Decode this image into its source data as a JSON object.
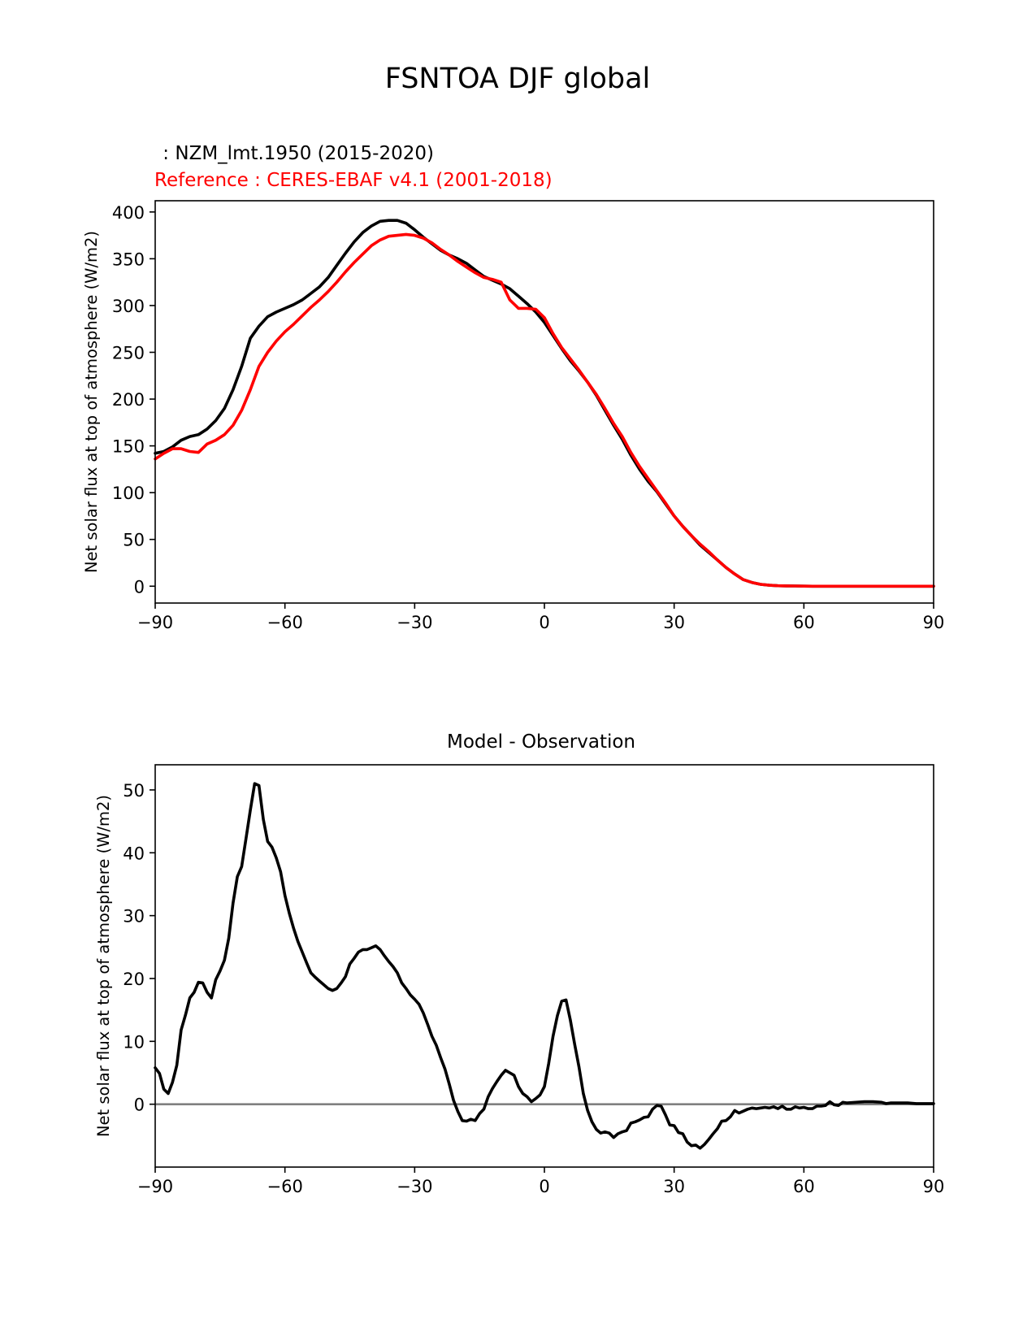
{
  "figure": {
    "title": "FSNTOA DJF global"
  },
  "colors": {
    "model": "#000000",
    "reference": "#ff0000",
    "zero_line": "#808080",
    "axis": "#000000"
  },
  "chart_data": [
    {
      "type": "line",
      "test_label": " : NZM_lmt.1950 (2015-2020)",
      "ref_label": "Reference : CERES-EBAF v4.1 (2001-2018)",
      "title": "",
      "xlabel": "",
      "ylabel": "Net solar flux at top of atmosphere (W/m2)",
      "xlim": [
        -90,
        90
      ],
      "ylim": [
        -18,
        412
      ],
      "xticks": [
        -90,
        -60,
        -30,
        0,
        30,
        60,
        90
      ],
      "xtick_labels": [
        "−90",
        "−60",
        "−30",
        "0",
        "30",
        "60",
        "90"
      ],
      "yticks": [
        0,
        50,
        100,
        150,
        200,
        250,
        300,
        350,
        400
      ],
      "ytick_labels": [
        "0",
        "50",
        "100",
        "150",
        "200",
        "250",
        "300",
        "350",
        "400"
      ],
      "series": [
        {
          "name": "NZM_lmt.1950",
          "color": "#000000",
          "x": [
            -90,
            -88,
            -86,
            -84,
            -82,
            -80,
            -78,
            -76,
            -74,
            -72,
            -70,
            -68,
            -66,
            -64,
            -62,
            -60,
            -58,
            -56,
            -54,
            -52,
            -50,
            -48,
            -46,
            -44,
            -42,
            -40,
            -38,
            -36,
            -34,
            -32,
            -30,
            -28,
            -26,
            -24,
            -22,
            -20,
            -18,
            -16,
            -14,
            -12,
            -10,
            -8,
            -6,
            -4,
            -2,
            0,
            2,
            4,
            6,
            8,
            10,
            12,
            14,
            16,
            18,
            20,
            22,
            24,
            26,
            28,
            30,
            32,
            34,
            36,
            38,
            40,
            42,
            44,
            46,
            48,
            50,
            52,
            54,
            56,
            58,
            60,
            62,
            64,
            66,
            68,
            70,
            72,
            74,
            76,
            78,
            80,
            82,
            84,
            86,
            88,
            90
          ],
          "values": [
            142,
            144,
            149,
            156,
            160,
            162,
            168,
            177,
            190,
            210,
            235,
            265,
            278,
            288,
            293,
            297,
            301,
            306,
            313,
            320,
            330,
            343,
            356,
            368,
            378,
            385,
            390,
            391,
            391,
            388,
            381,
            373,
            366,
            359,
            354,
            350,
            345,
            338,
            331,
            327,
            323,
            318,
            310,
            302,
            293,
            282,
            268,
            254,
            241,
            230,
            218,
            204,
            188,
            172,
            157,
            140,
            125,
            112,
            101,
            88,
            75,
            64,
            54,
            44,
            36,
            28,
            20,
            13,
            7,
            4,
            2,
            1,
            0.5,
            0.3,
            0.2,
            0.1,
            0,
            0,
            0,
            0,
            0,
            0,
            0,
            0,
            0,
            0,
            0,
            0,
            0,
            0,
            0
          ]
        },
        {
          "name": "CERES-EBAF v4.1",
          "color": "#ff0000",
          "x": [
            -90,
            -88,
            -86,
            -84,
            -82,
            -80,
            -78,
            -76,
            -74,
            -72,
            -70,
            -68,
            -66,
            -64,
            -62,
            -60,
            -58,
            -56,
            -54,
            -52,
            -50,
            -48,
            -46,
            -44,
            -42,
            -40,
            -38,
            -36,
            -34,
            -32,
            -30,
            -28,
            -26,
            -24,
            -22,
            -20,
            -18,
            -16,
            -14,
            -12,
            -10,
            -8,
            -6,
            -4,
            -2,
            0,
            2,
            4,
            6,
            8,
            10,
            12,
            14,
            16,
            18,
            20,
            22,
            24,
            26,
            28,
            30,
            32,
            34,
            36,
            38,
            40,
            42,
            44,
            46,
            48,
            50,
            52,
            54,
            56,
            58,
            60,
            62,
            64,
            66,
            68,
            70,
            72,
            74,
            76,
            78,
            80,
            82,
            84,
            86,
            88,
            90
          ],
          "values": [
            136,
            142,
            147,
            147,
            144,
            143,
            152,
            156,
            162,
            172,
            188,
            210,
            235,
            250,
            262,
            272,
            280,
            289,
            298,
            306,
            315,
            325,
            336,
            346,
            355,
            364,
            370,
            374,
            375,
            376,
            375,
            372,
            367,
            360,
            354,
            347,
            341,
            335,
            330,
            328,
            325,
            306,
            297,
            297,
            296,
            287,
            270,
            255,
            243,
            231,
            218,
            205,
            190,
            174,
            160,
            143,
            128,
            115,
            102,
            89,
            75,
            64,
            54,
            45,
            37,
            28,
            20,
            13,
            7,
            4,
            2,
            1,
            0.5,
            0.3,
            0.2,
            0.1,
            0,
            0,
            0,
            0,
            0,
            0,
            0,
            0,
            0,
            0,
            0,
            0,
            0,
            0,
            0
          ]
        }
      ]
    },
    {
      "type": "line",
      "title": "Model - Observation",
      "xlabel": "",
      "ylabel": "Net solar flux at top of atmosphere (W/m2)",
      "xlim": [
        -90,
        90
      ],
      "ylim": [
        -10,
        54
      ],
      "xticks": [
        -90,
        -60,
        -30,
        0,
        30,
        60,
        90
      ],
      "xtick_labels": [
        "−90",
        "−60",
        "−30",
        "0",
        "30",
        "60",
        "90"
      ],
      "yticks": [
        0,
        10,
        20,
        30,
        40,
        50
      ],
      "ytick_labels": [
        "0",
        "10",
        "20",
        "30",
        "40",
        "50"
      ],
      "zero_line": true,
      "series": [
        {
          "name": "Model - Observation",
          "color": "#000000",
          "x": [
            -90,
            -89,
            -88,
            -87,
            -86,
            -85,
            -84,
            -83,
            -82,
            -81,
            -80,
            -79,
            -78,
            -77,
            -76,
            -75,
            -74,
            -73,
            -72,
            -71,
            -70,
            -69,
            -68,
            -67,
            -66,
            -65,
            -64,
            -63,
            -62,
            -61,
            -60,
            -59,
            -58,
            -57,
            -56,
            -55,
            -54,
            -53,
            -52,
            -51,
            -50,
            -49,
            -48,
            -47,
            -46,
            -45,
            -44,
            -43,
            -42,
            -41,
            -40,
            -39,
            -38,
            -37,
            -36,
            -35,
            -34,
            -33,
            -32,
            -31,
            -30,
            -29,
            -28,
            -27,
            -26,
            -25,
            -24,
            -23,
            -22,
            -21,
            -20,
            -19,
            -18,
            -17,
            -16,
            -15,
            -14,
            -13,
            -12,
            -11,
            -10,
            -9,
            -8,
            -7,
            -6,
            -5,
            -4,
            -3,
            -2,
            -1,
            0,
            1,
            2,
            3,
            4,
            5,
            6,
            7,
            8,
            9,
            10,
            11,
            12,
            13,
            14,
            15,
            16,
            17,
            18,
            19,
            20,
            21,
            22,
            23,
            24,
            25,
            26,
            27,
            28,
            29,
            30,
            31,
            32,
            33,
            34,
            35,
            36,
            37,
            38,
            39,
            40,
            41,
            42,
            43,
            44,
            45,
            46,
            47,
            48,
            49,
            50,
            51,
            52,
            53,
            54,
            55,
            56,
            57,
            58,
            59,
            60,
            61,
            62,
            63,
            64,
            65,
            66,
            67,
            68,
            69,
            70,
            72,
            74,
            76,
            78,
            79,
            80,
            82,
            84,
            86,
            88,
            90
          ],
          "values": [
            5.8,
            4.9,
            2.4,
            1.7,
            3.5,
            6.2,
            11.8,
            14.2,
            16.9,
            17.8,
            19.4,
            19.3,
            17.8,
            16.9,
            19.8,
            21.2,
            22.9,
            26.4,
            32.0,
            36.2,
            37.8,
            42.3,
            46.8,
            51.0,
            50.7,
            45.3,
            41.8,
            40.9,
            39.2,
            37.0,
            33.2,
            30.4,
            28.0,
            25.9,
            24.2,
            22.5,
            20.9,
            20.2,
            19.6,
            19.0,
            18.4,
            18.1,
            18.4,
            19.3,
            20.3,
            22.3,
            23.2,
            24.2,
            24.6,
            24.6,
            24.9,
            25.2,
            24.6,
            23.6,
            22.7,
            21.9,
            20.9,
            19.3,
            18.4,
            17.4,
            16.7,
            15.9,
            14.5,
            12.7,
            10.8,
            9.4,
            7.4,
            5.6,
            3.2,
            0.6,
            -1.2,
            -2.6,
            -2.7,
            -2.4,
            -2.6,
            -1.5,
            -0.8,
            1.2,
            2.5,
            3.6,
            4.6,
            5.4,
            5.0,
            4.6,
            2.8,
            1.7,
            1.2,
            0.4,
            0.9,
            1.5,
            2.8,
            6.5,
            10.8,
            14.1,
            16.4,
            16.6,
            13.4,
            9.5,
            5.9,
            1.7,
            -1.0,
            -2.8,
            -4.0,
            -4.6,
            -4.4,
            -4.6,
            -5.3,
            -4.7,
            -4.4,
            -4.2,
            -3.0,
            -2.8,
            -2.5,
            -2.1,
            -2.0,
            -0.8,
            -0.2,
            -0.3,
            -1.7,
            -3.3,
            -3.4,
            -4.5,
            -4.7,
            -6.0,
            -6.6,
            -6.5,
            -7.0,
            -6.4,
            -5.6,
            -4.7,
            -3.9,
            -2.7,
            -2.6,
            -2.0,
            -1.0,
            -1.4,
            -1.1,
            -0.8,
            -0.6,
            -0.7,
            -0.6,
            -0.5,
            -0.6,
            -0.4,
            -0.7,
            -0.3,
            -0.8,
            -0.8,
            -0.4,
            -0.6,
            -0.5,
            -0.7,
            -0.7,
            -0.3,
            -0.3,
            -0.2,
            0.4,
            -0.1,
            -0.2,
            0.3,
            0.2,
            0.3,
            0.4,
            0.4,
            0.3,
            0.1,
            0.2,
            0.2,
            0.2,
            0.1,
            0.1,
            0.1
          ]
        }
      ]
    }
  ]
}
